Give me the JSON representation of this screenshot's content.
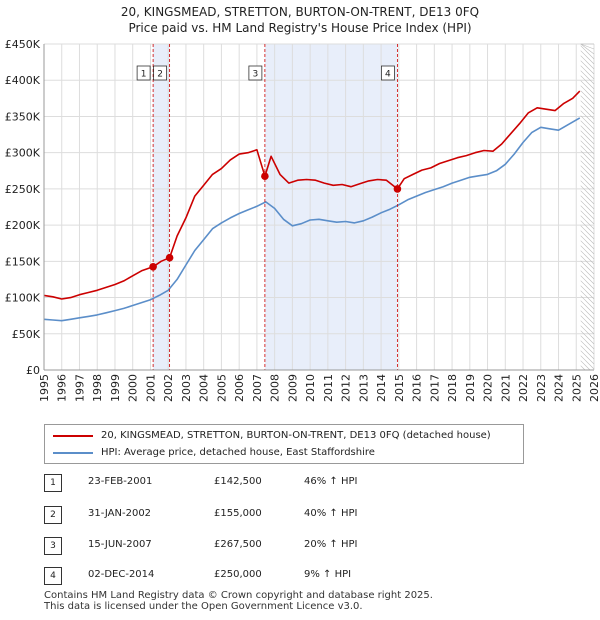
{
  "title_line1": "20, KINGSMEAD, STRETTON, BURTON-ON-TRENT, DE13 0FQ",
  "title_line2": "Price paid vs. HM Land Registry's House Price Index (HPI)",
  "colors": {
    "property": "#cc0000",
    "hpi": "#5b8ec9",
    "shade": "#e8eefa",
    "marker_line": "#cc0000",
    "grid": "#dddddd"
  },
  "legend": {
    "property_label": "20, KINGSMEAD, STRETTON, BURTON-ON-TRENT, DE13 0FQ (detached house)",
    "hpi_label": "HPI: Average price, detached house, East Staffordshire"
  },
  "transactions": [
    {
      "num": "1",
      "date": "23-FEB-2001",
      "price": "£142,500",
      "hpi": "46% ↑ HPI"
    },
    {
      "num": "2",
      "date": "31-JAN-2002",
      "price": "£155,000",
      "hpi": "40% ↑ HPI"
    },
    {
      "num": "3",
      "date": "15-JUN-2007",
      "price": "£267,500",
      "hpi": "20% ↑ HPI"
    },
    {
      "num": "4",
      "date": "02-DEC-2014",
      "price": "£250,000",
      "hpi": "9% ↑ HPI"
    }
  ],
  "footer_line1": "Contains HM Land Registry data © Crown copyright and database right 2025.",
  "footer_line2": "This data is licensed under the Open Government Licence v3.0.",
  "chart_data": {
    "type": "line",
    "xlim": [
      1995,
      2026
    ],
    "ylim": [
      0,
      450000
    ],
    "y_ticks": [
      0,
      50000,
      100000,
      150000,
      200000,
      250000,
      300000,
      350000,
      400000,
      450000
    ],
    "y_tick_labels": [
      "£0",
      "£50K",
      "£100K",
      "£150K",
      "£200K",
      "£250K",
      "£300K",
      "£350K",
      "£400K",
      "£450K"
    ],
    "x_ticks": [
      1995,
      1996,
      1997,
      1998,
      1999,
      2000,
      2001,
      2002,
      2003,
      2004,
      2005,
      2006,
      2007,
      2008,
      2009,
      2010,
      2011,
      2012,
      2013,
      2014,
      2015,
      2016,
      2017,
      2018,
      2019,
      2020,
      2021,
      2022,
      2023,
      2024,
      2025,
      2026
    ],
    "shaded_ranges": [
      [
        2001.15,
        2002.08
      ],
      [
        2007.45,
        2014.92
      ]
    ],
    "hatch_from": 2025.25,
    "sales": [
      {
        "label": "1",
        "x": 2001.15,
        "y": 142500
      },
      {
        "label": "2",
        "x": 2002.08,
        "y": 155000
      },
      {
        "label": "3",
        "x": 2007.45,
        "y": 267500
      },
      {
        "label": "4",
        "x": 2014.92,
        "y": 250000
      }
    ],
    "series": [
      {
        "name": "20, KINGSMEAD, STRETTON, BURTON-ON-TRENT, DE13 0FQ (detached house)",
        "x": [
          1995.0,
          1995.5,
          1996.0,
          1996.5,
          1997.0,
          1997.5,
          1998.0,
          1998.5,
          1999.0,
          1999.5,
          2000.0,
          2000.5,
          2001.15,
          2001.6,
          2002.08,
          2002.5,
          2003.0,
          2003.5,
          2004.0,
          2004.5,
          2005.0,
          2005.5,
          2006.0,
          2006.5,
          2007.0,
          2007.45,
          2007.8,
          2008.3,
          2008.8,
          2009.3,
          2009.8,
          2010.3,
          2010.8,
          2011.3,
          2011.8,
          2012.3,
          2012.8,
          2013.3,
          2013.8,
          2014.3,
          2014.92,
          2015.3,
          2015.8,
          2016.3,
          2016.8,
          2017.3,
          2017.8,
          2018.3,
          2018.8,
          2019.3,
          2019.8,
          2020.3,
          2020.8,
          2021.3,
          2021.8,
          2022.3,
          2022.8,
          2023.3,
          2023.8,
          2024.3,
          2024.8,
          2025.2
        ],
        "values": [
          103000,
          101000,
          98000,
          100000,
          104000,
          107000,
          110000,
          114000,
          118000,
          123000,
          130000,
          137000,
          142500,
          150000,
          155000,
          185000,
          210000,
          240000,
          255000,
          270000,
          278000,
          290000,
          298000,
          300000,
          304000,
          267500,
          295000,
          270000,
          258000,
          262000,
          263000,
          262000,
          258000,
          255000,
          256000,
          253000,
          257000,
          261000,
          263000,
          262000,
          250000,
          264000,
          270000,
          276000,
          279000,
          285000,
          289000,
          293000,
          296000,
          300000,
          303000,
          302000,
          312000,
          326000,
          340000,
          355000,
          362000,
          360000,
          358000,
          368000,
          375000,
          385000
        ]
      },
      {
        "name": "HPI: Average price, detached house, East Staffordshire",
        "x": [
          1995.0,
          1995.5,
          1996.0,
          1996.5,
          1997.0,
          1997.5,
          1998.0,
          1998.5,
          1999.0,
          1999.5,
          2000.0,
          2000.5,
          2001.0,
          2001.5,
          2002.0,
          2002.5,
          2003.0,
          2003.5,
          2004.0,
          2004.5,
          2005.0,
          2005.5,
          2006.0,
          2006.5,
          2007.0,
          2007.5,
          2008.0,
          2008.5,
          2009.0,
          2009.5,
          2010.0,
          2010.5,
          2011.0,
          2011.5,
          2012.0,
          2012.5,
          2013.0,
          2013.5,
          2014.0,
          2014.5,
          2015.0,
          2015.5,
          2016.0,
          2016.5,
          2017.0,
          2017.5,
          2018.0,
          2018.5,
          2019.0,
          2019.5,
          2020.0,
          2020.5,
          2021.0,
          2021.5,
          2022.0,
          2022.5,
          2023.0,
          2023.5,
          2024.0,
          2024.5,
          2025.2
        ],
        "values": [
          70000,
          69000,
          68000,
          70000,
          72000,
          74000,
          76000,
          79000,
          82000,
          85000,
          89000,
          93000,
          97000,
          103000,
          110000,
          125000,
          145000,
          165000,
          180000,
          195000,
          203000,
          210000,
          216000,
          221000,
          226000,
          232000,
          223000,
          208000,
          199000,
          202000,
          207000,
          208000,
          206000,
          204000,
          205000,
          203000,
          206000,
          211000,
          217000,
          222000,
          228000,
          235000,
          240000,
          245000,
          249000,
          253000,
          258000,
          262000,
          266000,
          268000,
          270000,
          275000,
          284000,
          298000,
          314000,
          328000,
          335000,
          333000,
          331000,
          338000,
          348000
        ]
      }
    ]
  }
}
